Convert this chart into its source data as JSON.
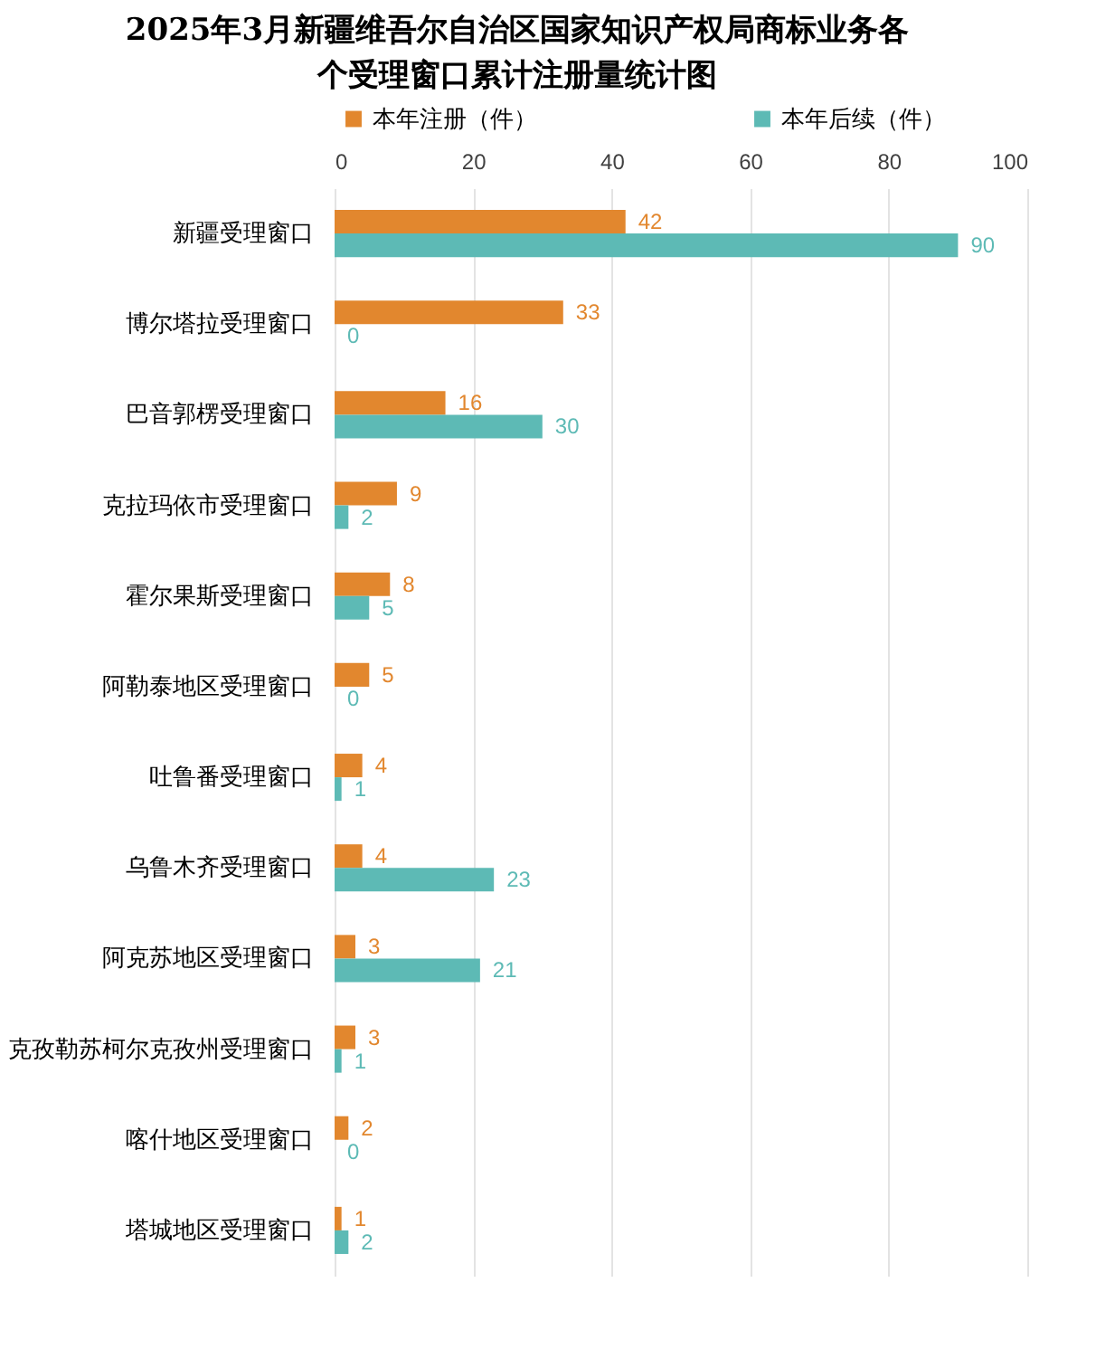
{
  "chart_data": {
    "type": "bar",
    "orientation": "horizontal",
    "title": "2025年3月新疆维吾尔自治区国家知识产权局商标业务各个受理窗口累计注册量统计图",
    "categories": [
      "新疆受理窗口",
      "博尔塔拉受理窗口",
      "巴音郭楞受理窗口",
      "克拉玛依市受理窗口",
      "霍尔果斯受理窗口",
      "阿勒泰地区受理窗口",
      "吐鲁番受理窗口",
      "乌鲁木齐受理窗口",
      "阿克苏地区受理窗口",
      "克孜勒苏柯尔克孜州受理窗口",
      "喀什地区受理窗口",
      "塔城地区受理窗口"
    ],
    "series": [
      {
        "name": "本年注册（件）",
        "color": "#e2872e",
        "values": [
          42,
          33,
          16,
          9,
          8,
          5,
          4,
          4,
          3,
          3,
          2,
          1
        ]
      },
      {
        "name": "本年后续（件）",
        "color": "#5dbab5",
        "values": [
          90,
          0,
          30,
          2,
          5,
          0,
          1,
          23,
          21,
          1,
          0,
          2
        ]
      }
    ],
    "xlim": [
      0,
      100
    ],
    "xticks": [
      0,
      20,
      40,
      60,
      80,
      100
    ],
    "grid": "x",
    "legend": "top",
    "data_labels": true
  }
}
